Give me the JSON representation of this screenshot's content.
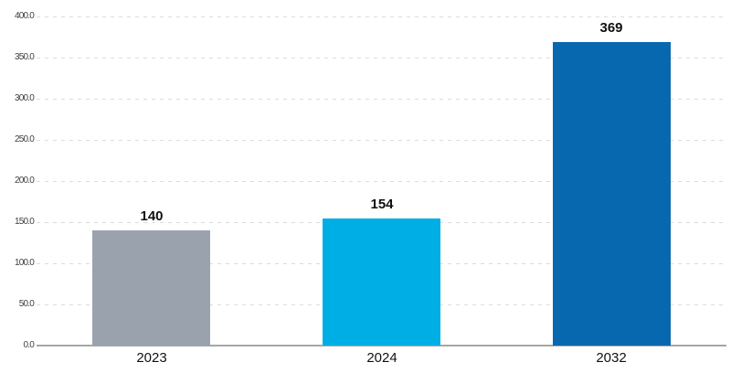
{
  "chart_data": {
    "type": "bar",
    "categories": [
      "2023",
      "2024",
      "2032"
    ],
    "values": [
      140,
      154,
      369
    ],
    "value_labels": [
      "140",
      "154",
      "369"
    ],
    "bar_colors": [
      "#9AA3AD",
      "#00AEE6",
      "#0768AF"
    ],
    "title": "",
    "xlabel": "",
    "ylabel": "",
    "ylim": [
      0,
      400
    ],
    "ytick_step": 50,
    "ytick_labels": [
      "0.0",
      "50.0",
      "100.0",
      "150.0",
      "200.0",
      "250.0",
      "300.0",
      "350.0",
      "400.0"
    ],
    "grid": "horizontal-dashed",
    "legend_position": "none"
  },
  "colors": {
    "background": "#FFFFFF",
    "gridline": "#DCDCDC",
    "axis_line": "#A6A6A6",
    "tick_text": "#3F3F3F",
    "label_text": "#111111"
  }
}
